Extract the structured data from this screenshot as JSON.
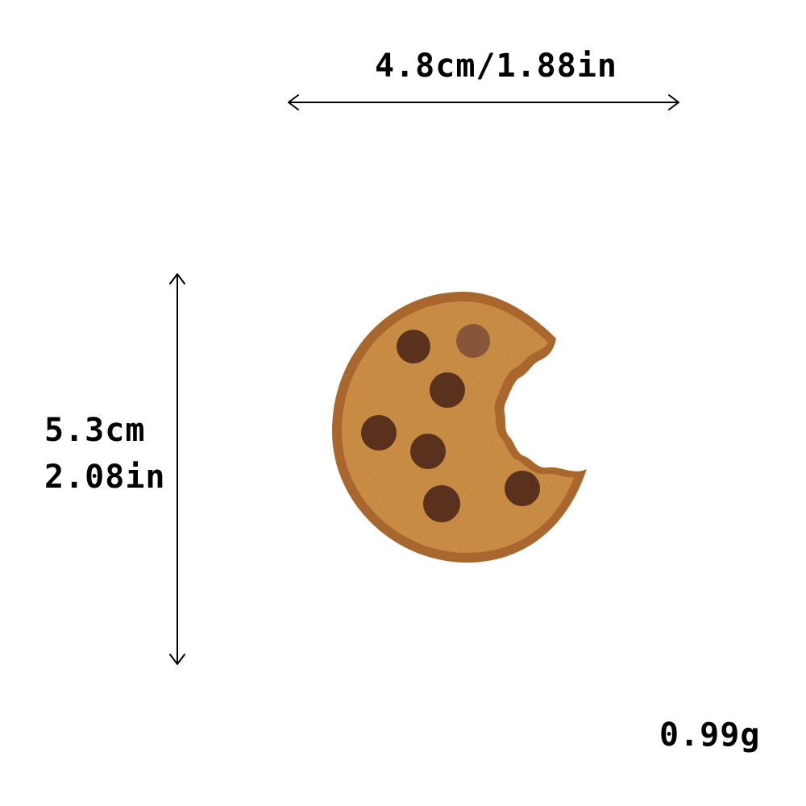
{
  "dimensions": {
    "width_label": "4.8cm/1.88in",
    "height_cm_label": "5.3cm",
    "height_in_label": "2.08in",
    "weight_label": "0.99g"
  },
  "product": {
    "icon": "cookie-patch-icon",
    "colors": {
      "outline": "#a9672d",
      "outline_highlight": "#c98a46",
      "dough": "#c98c44",
      "chip_dark": "#5a311c",
      "chip_light": "#875639"
    }
  }
}
